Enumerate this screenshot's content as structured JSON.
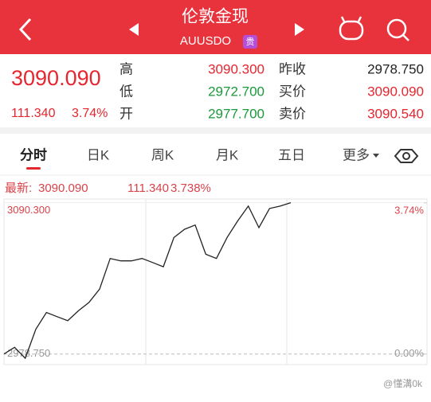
{
  "header": {
    "title": "伦敦金现",
    "subtitle": "AUUSDO",
    "badge": "贵"
  },
  "quote": {
    "price": "3090.090",
    "change": "111.340",
    "percent": "3.74%",
    "color": "#e5262f",
    "rows": [
      {
        "label": "高",
        "value": "3090.300",
        "color": "#e5262f",
        "label2": "昨收",
        "value2": "2978.750",
        "color2": "#222222"
      },
      {
        "label": "低",
        "value": "2972.700",
        "color": "#1a9a3a",
        "label2": "买价",
        "value2": "3090.090",
        "color2": "#e5262f"
      },
      {
        "label": "开",
        "value": "2977.700",
        "color": "#1a9a3a",
        "label2": "卖价",
        "value2": "3090.540",
        "color2": "#e5262f"
      }
    ]
  },
  "tabs": [
    "分时",
    "日K",
    "周K",
    "月K",
    "五日",
    "更多"
  ],
  "latest": {
    "label": "最新:",
    "price": "3090.090",
    "change": "111.340",
    "percent": "3.738%"
  },
  "chart_data": {
    "type": "line",
    "color": "#222222",
    "values": [
      2978.8,
      2983.7,
      2975.7,
      2997.1,
      3009.4,
      3006.3,
      3003.3,
      3010.6,
      3016.8,
      3026.6,
      3049.2,
      3047.4,
      3047.4,
      3049.2,
      3046.2,
      3043.1,
      3064.6,
      3070.7,
      3073.8,
      3052.3,
      3049.2,
      3064.6,
      3076.8,
      3087.8,
      3071.9,
      3086.0,
      3087.8,
      3090.3
    ],
    "ylim": [
      2971,
      3093
    ],
    "yticks": [
      {
        "value": 3090.3,
        "label": "3090.300"
      },
      {
        "value": 2978.75,
        "label": "2978.750"
      }
    ],
    "y2lim": [
      -0.26,
      3.835
    ],
    "y2ticks": [
      {
        "value": 3.74,
        "label": "3.74%"
      },
      {
        "value": 0,
        "label": "0.00%"
      }
    ]
  },
  "watermark": "@懂溝0k"
}
